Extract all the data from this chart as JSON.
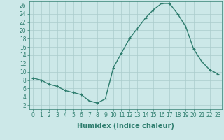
{
  "x": [
    0,
    1,
    2,
    3,
    4,
    5,
    6,
    7,
    8,
    9,
    10,
    11,
    12,
    13,
    14,
    15,
    16,
    17,
    18,
    19,
    20,
    21,
    22,
    23
  ],
  "y": [
    8.5,
    8.0,
    7.0,
    6.5,
    5.5,
    5.0,
    4.5,
    3.0,
    2.5,
    3.5,
    11.0,
    14.5,
    18.0,
    20.5,
    23.0,
    25.0,
    26.5,
    26.5,
    24.0,
    21.0,
    15.5,
    12.5,
    10.5,
    9.5
  ],
  "line_color": "#2e7d6e",
  "marker": "+",
  "marker_size": 3,
  "bg_color": "#cce8e8",
  "grid_color": "#aacccc",
  "xlabel": "Humidex (Indice chaleur)",
  "xlim": [
    -0.5,
    23.5
  ],
  "ylim": [
    1,
    27
  ],
  "yticks": [
    2,
    4,
    6,
    8,
    10,
    12,
    14,
    16,
    18,
    20,
    22,
    24,
    26
  ],
  "xticks": [
    0,
    1,
    2,
    3,
    4,
    5,
    6,
    7,
    8,
    9,
    10,
    11,
    12,
    13,
    14,
    15,
    16,
    17,
    18,
    19,
    20,
    21,
    22,
    23
  ],
  "tick_fontsize": 5.5,
  "xlabel_fontsize": 7.0,
  "linewidth": 1.0,
  "markeredgewidth": 0.8
}
